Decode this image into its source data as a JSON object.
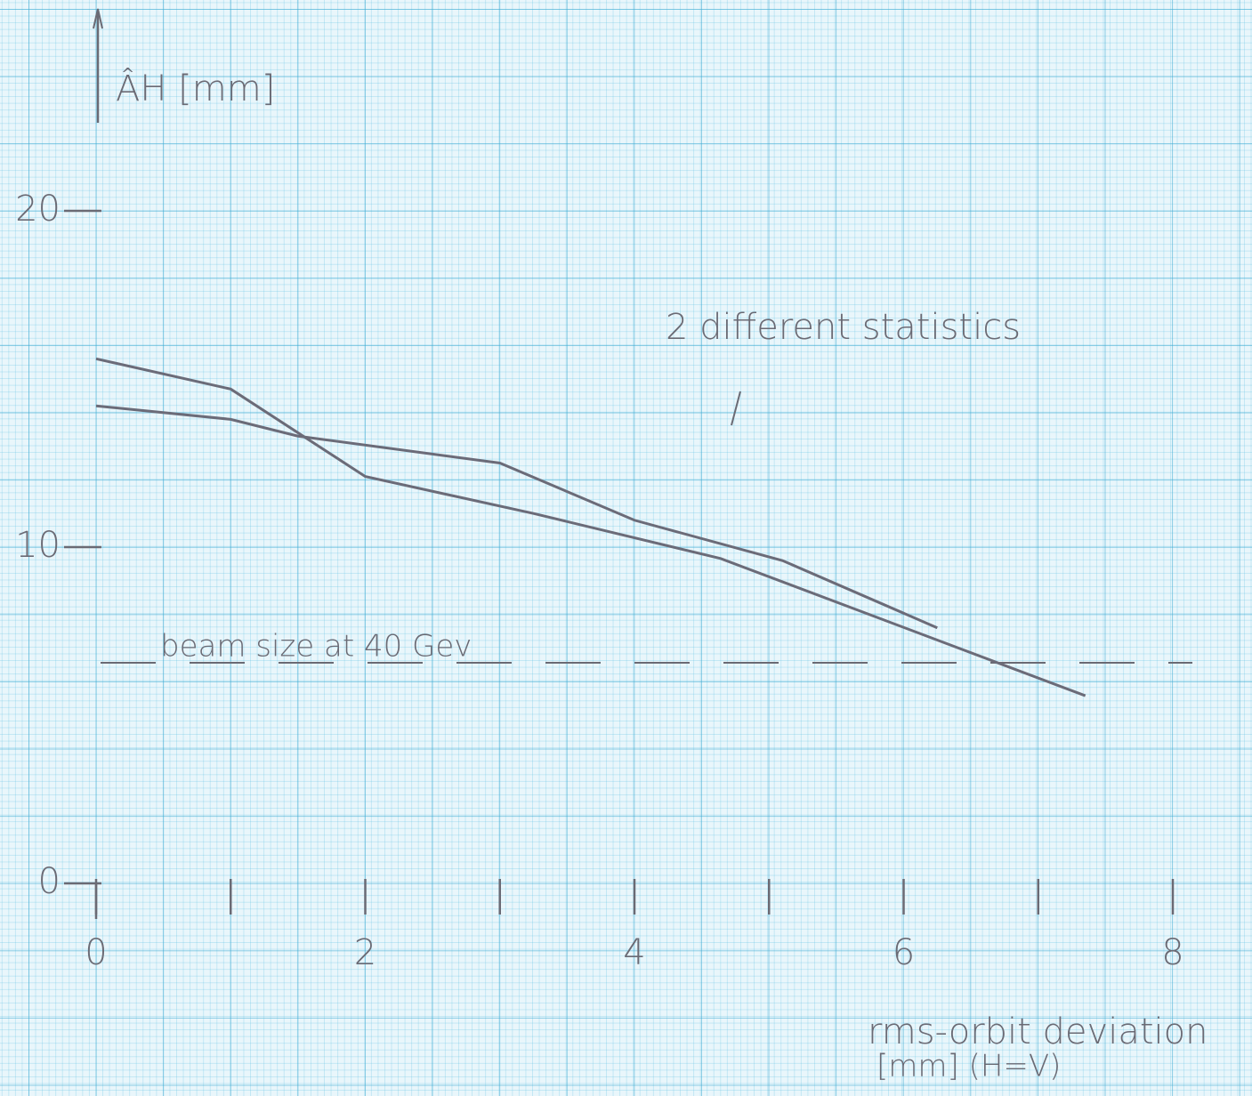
{
  "chart_data": {
    "type": "line",
    "ylabel": "ÂH [mm]",
    "xlabel": "rms-orbit deviation",
    "xlabel_unit": "[mm]    (H=V)",
    "annotations": [
      "2 different statistics",
      "beam size at 40 Gev"
    ],
    "reference_value": 6.56,
    "xlim": [
      0,
      8
    ],
    "ylim": [
      0,
      20
    ],
    "xticks": [
      0,
      2,
      4,
      6,
      8
    ],
    "xminor": [
      1,
      3,
      5,
      7
    ],
    "yticks": [
      0,
      10,
      20
    ],
    "series": [
      {
        "color": "#6b6b78",
        "x": [
          0,
          1,
          2,
          3.25,
          4.64,
          7.35
        ],
        "values": [
          15.6,
          14.7,
          12.1,
          11.0,
          9.66,
          5.58
        ]
      },
      {
        "color": "#6b6b78",
        "x": [
          0,
          1,
          1.5,
          3,
          4,
          5.1,
          6.25
        ],
        "values": [
          14.2,
          13.8,
          13.3,
          12.5,
          10.8,
          9.6,
          7.6
        ]
      }
    ]
  }
}
